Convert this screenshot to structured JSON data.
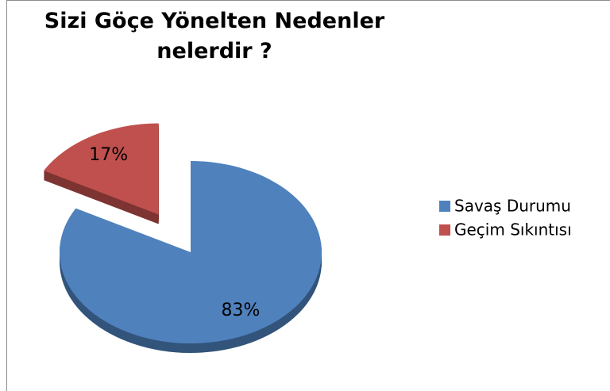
{
  "chart_data": {
    "type": "pie",
    "title": "Sizi Göçe Yönelten Nedenler nelerdir ?",
    "categories": [
      "Savaş Durumu",
      "Geçim Sıkıntısı"
    ],
    "values": [
      83,
      17
    ],
    "value_labels": [
      "83%",
      "17%"
    ],
    "colors": [
      "#4f81bd",
      "#c0504d"
    ],
    "legend": "right"
  }
}
